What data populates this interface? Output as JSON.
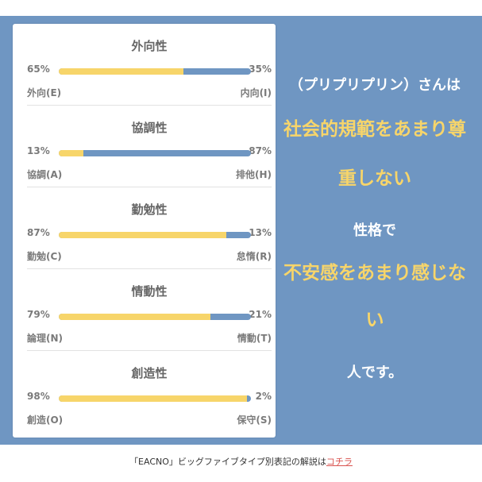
{
  "traits": [
    {
      "title": "外向性",
      "left_pct": "65%",
      "right_pct": "35%",
      "left_label": "外向(E)",
      "right_label": "内向(I)",
      "fill": 0.65
    },
    {
      "title": "協調性",
      "left_pct": "13%",
      "right_pct": "87%",
      "left_label": "協調(A)",
      "right_label": "排他(H)",
      "fill": 0.13
    },
    {
      "title": "勤勉性",
      "left_pct": "87%",
      "right_pct": "13%",
      "left_label": "勤勉(C)",
      "right_label": "怠惰(R)",
      "fill": 0.87
    },
    {
      "title": "情動性",
      "left_pct": "79%",
      "right_pct": "21%",
      "left_label": "論理(N)",
      "right_label": "情動(T)",
      "fill": 0.79
    },
    {
      "title": "創造性",
      "left_pct": "98%",
      "right_pct": "2%",
      "left_label": "創造(O)",
      "right_label": "保守(S)",
      "fill": 0.98
    }
  ],
  "description": {
    "name_line": "（プリプリプリン）さんは",
    "trait1_line1": "社会的規範をあまり尊",
    "trait1_line2": "重しない",
    "connector": "性格で",
    "trait2_line1": "不安感をあまり感じな",
    "trait2_line2": "い",
    "ending": "人です。"
  },
  "footer": {
    "text": "「EACNO」ビッグファイブタイプ別表記の解説は",
    "link": "コチラ"
  },
  "colors": {
    "panel": "#6f96c2",
    "accent_yellow": "#f7d56a",
    "bar_blue": "#6f96c2"
  }
}
